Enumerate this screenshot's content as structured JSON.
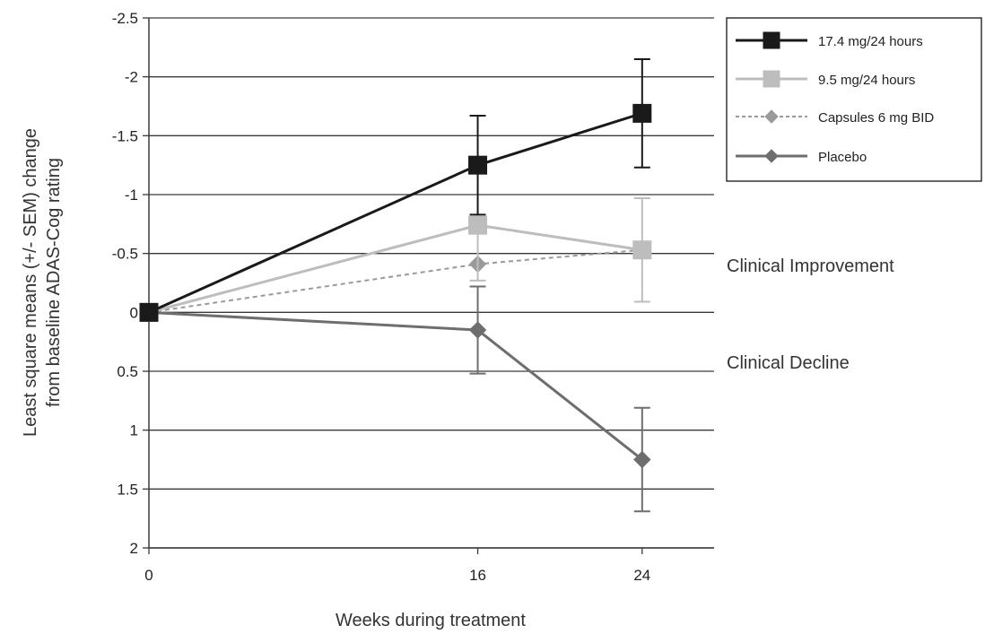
{
  "chart_data": {
    "type": "line",
    "xlabel": "Weeks during treatment",
    "ylabel_lines": [
      "Least square means (+/- SEM) change",
      "from baseline ADAS-Cog rating"
    ],
    "x_ticks": [
      0,
      16,
      24
    ],
    "x_tick_labels": [
      "0",
      "16",
      "24"
    ],
    "xlim": [
      0,
      27.5
    ],
    "y_ticks": [
      -2.5,
      -2,
      -1.5,
      -1,
      -0.5,
      0,
      0.5,
      1,
      1.5,
      2
    ],
    "y_tick_labels": [
      "-2.5",
      "-2",
      "-1.5",
      "-1",
      "-0.5",
      "0",
      "0.5",
      "1",
      "1.5",
      "2"
    ],
    "ylim": [
      -2.5,
      2
    ],
    "y_inverted": true,
    "grid": "horizontal",
    "legend_position": "top-right",
    "series": [
      {
        "name": "17.4 mg/24 hours",
        "color": "#1a1a1a",
        "marker": "square",
        "line_style": "solid",
        "x": [
          0,
          16,
          24
        ],
        "y": [
          0,
          -1.25,
          -1.69
        ],
        "err": [
          0,
          0.42,
          0.46
        ]
      },
      {
        "name": "9.5 mg/24 hours",
        "color": "#bdbdbd",
        "marker": "square",
        "line_style": "solid",
        "x": [
          0,
          16,
          24
        ],
        "y": [
          0,
          -0.74,
          -0.53
        ],
        "err": [
          0,
          0.47,
          0.44
        ]
      },
      {
        "name": "Capsules 6 mg BID",
        "color": "#9a9a9a",
        "marker": "diamond",
        "line_style": "dashed",
        "x": [
          0,
          16,
          24
        ],
        "y": [
          0,
          -0.41,
          -0.53
        ],
        "err": [
          0,
          0.0,
          0.0
        ]
      },
      {
        "name": "Placebo",
        "color": "#6e6e6e",
        "marker": "diamond",
        "line_style": "solid",
        "x": [
          0,
          16,
          24
        ],
        "y": [
          0,
          0.15,
          1.25
        ],
        "err": [
          0,
          0.37,
          0.44
        ]
      }
    ],
    "annotations": [
      "Clinical Improvement",
      "Clinical Decline"
    ]
  }
}
